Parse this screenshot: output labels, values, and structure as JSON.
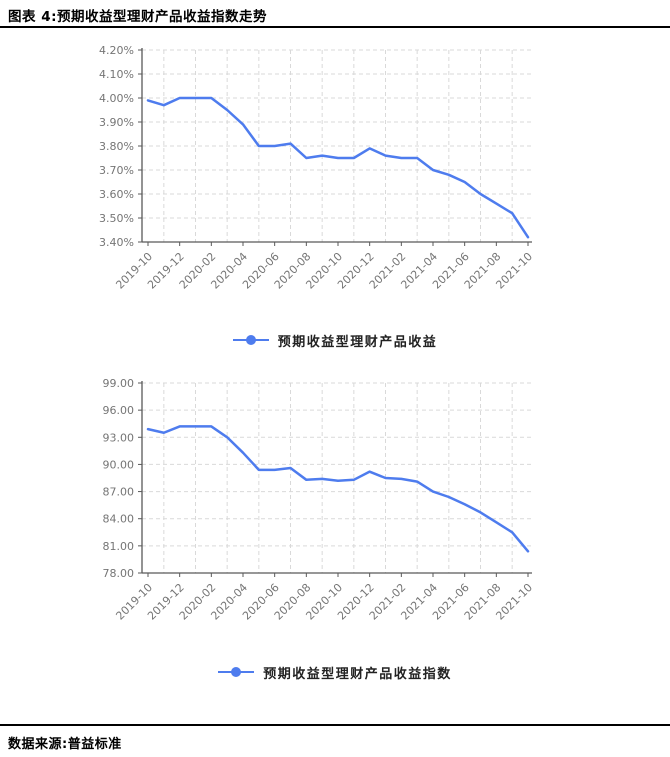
{
  "header": {
    "title": "图表 4:预期收益型理财产品收益指数走势"
  },
  "footer": {
    "source": "数据来源:普益标准"
  },
  "colors": {
    "line": "#4e7cee",
    "grid": "#d9d9d9",
    "axis": "#595959",
    "tick_text": "#757575",
    "divider": "#000000"
  },
  "chart_data": [
    {
      "type": "line",
      "title": "",
      "legend_position": "bottom",
      "grid": true,
      "x": [
        "2019-10",
        "2019-11",
        "2019-12",
        "2020-01",
        "2020-02",
        "2020-03",
        "2020-04",
        "2020-05",
        "2020-06",
        "2020-07",
        "2020-08",
        "2020-09",
        "2020-10",
        "2020-11",
        "2020-12",
        "2021-01",
        "2021-02",
        "2021-03",
        "2021-04",
        "2021-05",
        "2021-06",
        "2021-07",
        "2021-08",
        "2021-09",
        "2021-10"
      ],
      "x_tick_labels": [
        "2019-10",
        "2019-12",
        "2020-02",
        "2020-04",
        "2020-06",
        "2020-08",
        "2020-10",
        "2020-12",
        "2021-02",
        "2021-04",
        "2021-06",
        "2021-08",
        "2021-10"
      ],
      "series": [
        {
          "name": "预期收益型理财产品收益",
          "values": [
            3.99,
            3.97,
            4.0,
            4.0,
            4.0,
            3.95,
            3.89,
            3.8,
            3.8,
            3.81,
            3.75,
            3.76,
            3.75,
            3.75,
            3.79,
            3.76,
            3.75,
            3.75,
            3.7,
            3.68,
            3.65,
            3.6,
            3.56,
            3.52,
            3.42
          ]
        }
      ],
      "ylim": [
        3.4,
        4.2
      ],
      "ytick_step": 0.1,
      "ytick_decimals": 2,
      "ytick_suffix": "%",
      "ytick_labels": [
        "3.40%",
        "3.50%",
        "3.60%",
        "3.70%",
        "3.80%",
        "3.90%",
        "4.00%",
        "4.10%",
        "4.20%"
      ],
      "xlabel": "",
      "ylabel": ""
    },
    {
      "type": "line",
      "title": "",
      "legend_position": "bottom",
      "grid": true,
      "x": [
        "2019-10",
        "2019-11",
        "2019-12",
        "2020-01",
        "2020-02",
        "2020-03",
        "2020-04",
        "2020-05",
        "2020-06",
        "2020-07",
        "2020-08",
        "2020-09",
        "2020-10",
        "2020-11",
        "2020-12",
        "2021-01",
        "2021-02",
        "2021-03",
        "2021-04",
        "2021-05",
        "2021-06",
        "2021-07",
        "2021-08",
        "2021-09",
        "2021-10"
      ],
      "x_tick_labels": [
        "2019-10",
        "2019-12",
        "2020-02",
        "2020-04",
        "2020-06",
        "2020-08",
        "2020-10",
        "2020-12",
        "2021-02",
        "2021-04",
        "2021-06",
        "2021-08",
        "2021-10"
      ],
      "series": [
        {
          "name": "预期收益型理财产品收益指数",
          "values": [
            93.9,
            93.5,
            94.2,
            94.2,
            94.2,
            93.0,
            91.3,
            89.4,
            89.4,
            89.6,
            88.3,
            88.4,
            88.2,
            88.3,
            89.2,
            88.5,
            88.4,
            88.1,
            87.0,
            86.4,
            85.6,
            84.7,
            83.6,
            82.5,
            80.4
          ]
        }
      ],
      "ylim": [
        78.0,
        99.0
      ],
      "ytick_step": 3.0,
      "ytick_decimals": 2,
      "ytick_suffix": "",
      "ytick_labels": [
        "78.00",
        "81.00",
        "84.00",
        "87.00",
        "90.00",
        "93.00",
        "96.00",
        "99.00"
      ],
      "xlabel": "",
      "ylabel": ""
    }
  ]
}
